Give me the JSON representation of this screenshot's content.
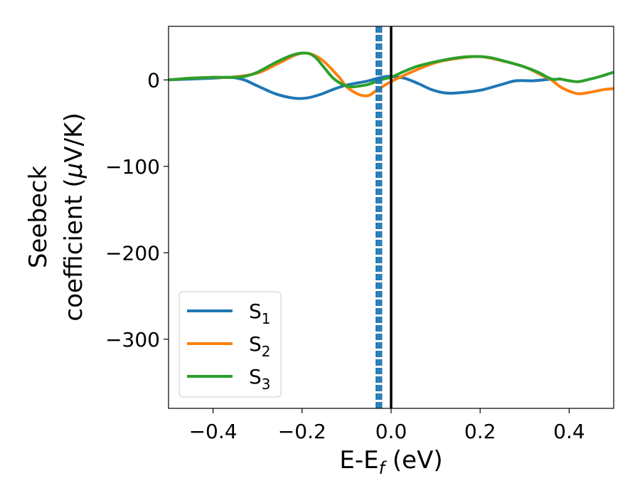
{
  "chart_data": {
    "type": "line",
    "xlabel": "E-E",
    "xlabel_sub": "f",
    "xlabel_unit": " (eV)",
    "ylabel_line1": "Seebeck",
    "ylabel_line2_pre": "coefficient  (",
    "ylabel_line2_mu": "μ",
    "ylabel_line2_post": "V/K)",
    "xlim": [
      -0.5,
      0.5
    ],
    "ylim": [
      -380,
      62
    ],
    "xticks": [
      -0.4,
      -0.2,
      0.0,
      0.2,
      0.4
    ],
    "xtick_labels": [
      "−0.4",
      "−0.2",
      "0.0",
      "0.2",
      "0.4"
    ],
    "yticks": [
      0,
      -100,
      -200,
      -300
    ],
    "ytick_labels": [
      "0",
      "−100",
      "−200",
      "−300"
    ],
    "grid": false,
    "legend_position": "lower-left",
    "vertical_lines": [
      {
        "x": 0.0,
        "style": "solid",
        "color": "#000000"
      },
      {
        "x": -0.0325,
        "style": "dashed",
        "color": "#1f77b4"
      },
      {
        "x": -0.0275,
        "style": "dashed",
        "color": "#1f77b4"
      },
      {
        "x": -0.0225,
        "style": "dashed",
        "color": "#1f77b4"
      }
    ],
    "series": [
      {
        "name": "S",
        "sub": "1",
        "color": "#1f77b4",
        "x": [
          -0.5,
          -0.45,
          -0.4,
          -0.36,
          -0.33,
          -0.3,
          -0.26,
          -0.22,
          -0.19,
          -0.16,
          -0.13,
          -0.1,
          -0.07,
          -0.05,
          -0.03,
          -0.01,
          0.0,
          0.03,
          0.06,
          0.09,
          0.12,
          0.15,
          0.2,
          0.25,
          0.28,
          0.32,
          0.36
        ],
        "y": [
          0,
          1,
          2,
          3,
          0,
          -7,
          -16,
          -21,
          -21,
          -17,
          -11,
          -6,
          -3,
          -1,
          2,
          4,
          4,
          2,
          -4,
          -11,
          -15,
          -15,
          -12,
          -5,
          -1,
          -1,
          1
        ]
      },
      {
        "name": "S",
        "sub": "2",
        "color": "#ff7f0e",
        "x": [
          -0.5,
          -0.45,
          -0.4,
          -0.36,
          -0.3,
          -0.25,
          -0.2,
          -0.16,
          -0.12,
          -0.1,
          -0.08,
          -0.065,
          -0.05,
          -0.035,
          -0.02,
          0.0,
          0.05,
          0.1,
          0.15,
          0.2,
          0.25,
          0.3,
          0.34,
          0.36,
          0.38,
          0.4,
          0.42,
          0.44,
          0.46,
          0.48,
          0.5
        ],
        "y": [
          0,
          2,
          3,
          3,
          8,
          20,
          31,
          25,
          5,
          -8,
          -15,
          -18,
          -18,
          -13,
          -8,
          -2,
          10,
          20,
          25,
          27,
          22,
          15,
          5,
          0,
          -8,
          -13,
          -16,
          -15,
          -13,
          -11,
          -10
        ]
      },
      {
        "name": "S",
        "sub": "3",
        "color": "#2ca02c",
        "x": [
          -0.5,
          -0.45,
          -0.4,
          -0.36,
          -0.33,
          -0.3,
          -0.26,
          -0.22,
          -0.19,
          -0.17,
          -0.15,
          -0.13,
          -0.11,
          -0.09,
          -0.07,
          -0.05,
          -0.03,
          -0.01,
          0.0,
          0.03,
          0.06,
          0.1,
          0.14,
          0.18,
          0.22,
          0.26,
          0.3,
          0.33,
          0.36,
          0.38,
          0.4,
          0.42,
          0.44,
          0.47,
          0.5
        ],
        "y": [
          0,
          2,
          3,
          3,
          4,
          9,
          20,
          29,
          31,
          26,
          14,
          2,
          -5,
          -8,
          -7,
          -5,
          -1,
          2,
          3,
          10,
          16,
          21,
          25,
          27,
          26,
          21,
          15,
          9,
          1,
          1,
          -1,
          -2,
          0,
          4,
          9
        ]
      }
    ]
  }
}
